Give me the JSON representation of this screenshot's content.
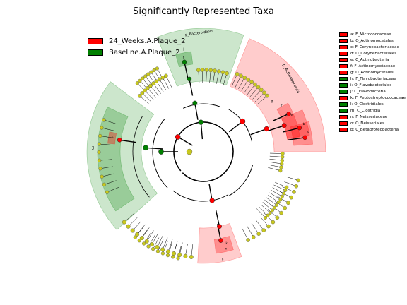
{
  "title": "Significantly Represented Taxa",
  "colors": {
    "enriched_24w": "#ff0000",
    "enriched_baseline": "#008000",
    "node_neutral": "#c8c81e",
    "edge": "#000000"
  },
  "groups": [
    {
      "label": "24_Weeks.A.Plaque_2",
      "color": "#ff0000"
    },
    {
      "label": "Baseline.A.Plaque_2",
      "color": "#008000"
    }
  ],
  "clade_labels": {
    "bacteroidetes": "p_Bacteroidetes",
    "actinobacteria": "p_Actinobacteria",
    "m": "m",
    "i": "i",
    "h": "h",
    "j": "j",
    "c": "c",
    "a": "a",
    "b": "b",
    "e": "e",
    "f": "f",
    "g": "g",
    "o": "o",
    "n": "n",
    "k": "k"
  },
  "taxa_key": [
    {
      "text": "a: F_Micrococcaceae",
      "color": "#ff0000"
    },
    {
      "text": "b: O_Actinomycetales",
      "color": "#ff0000"
    },
    {
      "text": "c: F_Corynebacteriaceae",
      "color": "#ff0000"
    },
    {
      "text": "d: O_Corynebacteriales",
      "color": "#ff0000"
    },
    {
      "text": "e: C_Actinobacteria",
      "color": "#ff0000"
    },
    {
      "text": "f: F_Actinomycetaceae",
      "color": "#ff0000"
    },
    {
      "text": "g: O_Actinomycetales",
      "color": "#ff0000"
    },
    {
      "text": "h: F_Flavobacteriaceae",
      "color": "#008000"
    },
    {
      "text": "i: O_Flavobacteriales",
      "color": "#008000"
    },
    {
      "text": "j: C_Flavobacteria",
      "color": "#008000"
    },
    {
      "text": "k: F_Peptostreptococcaceae",
      "color": "#ff0000"
    },
    {
      "text": "l: O_Clostridiales",
      "color": "#008000"
    },
    {
      "text": "m: C_Clostridia",
      "color": "#008000"
    },
    {
      "text": "n: F_Neisseriaceae",
      "color": "#ff0000"
    },
    {
      "text": "o: O_Neisseriales",
      "color": "#ff0000"
    },
    {
      "text": "p: C_Betaproteobacteria",
      "color": "#ff0000"
    }
  ]
}
